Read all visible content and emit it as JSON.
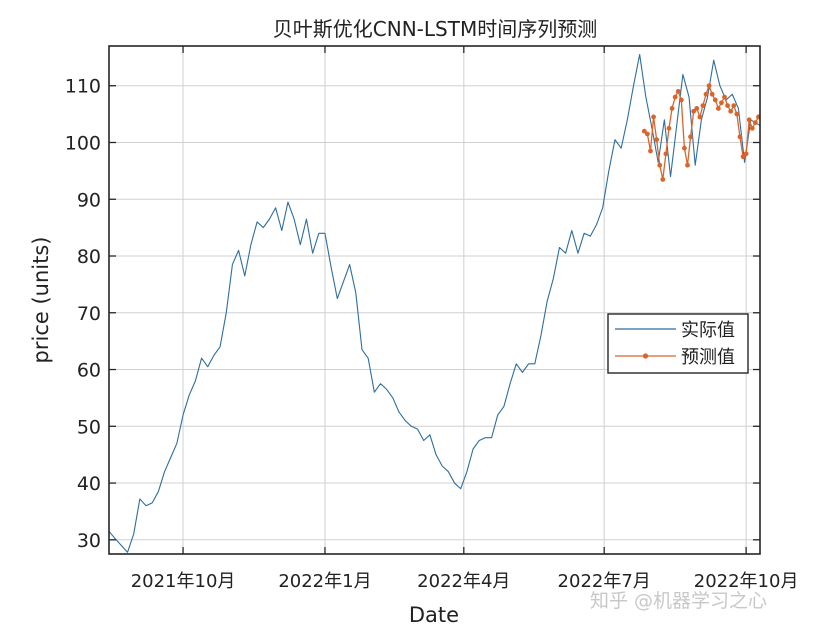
{
  "colors": {
    "actual": "#2e6e9e",
    "predicted": "#d9652b",
    "grid": "#d0d0d0",
    "axis": "#262626"
  },
  "watermark": "知乎 @机器学习之心",
  "chart_data": {
    "type": "line",
    "title": "贝叶斯优化CNN-LSTM时间序列预测",
    "xlabel": "Date",
    "ylabel": "price (units)",
    "xlim": [
      "2021-08-14",
      "2022-10-10"
    ],
    "ylim": [
      27.5,
      117
    ],
    "yticks": [
      30,
      40,
      50,
      60,
      70,
      80,
      90,
      100,
      110
    ],
    "xticks": [
      {
        "value": "2021-10-01",
        "label": "2021年10月"
      },
      {
        "value": "2022-01-01",
        "label": "2022年1月"
      },
      {
        "value": "2022-04-01",
        "label": "2022年4月"
      },
      {
        "value": "2022-07-01",
        "label": "2022年7月"
      },
      {
        "value": "2022-10-01",
        "label": "2022年10月"
      }
    ],
    "grid": true,
    "legend_position": "right",
    "series": [
      {
        "name": "实际值",
        "color": "#2e6e9e",
        "marker": "none",
        "points": [
          [
            "2021-08-14",
            31.5
          ],
          [
            "2021-08-18",
            30.2
          ],
          [
            "2021-08-22",
            29.0
          ],
          [
            "2021-08-26",
            27.8
          ],
          [
            "2021-08-30",
            31.0
          ],
          [
            "2021-09-03",
            37.2
          ],
          [
            "2021-09-07",
            36.0
          ],
          [
            "2021-09-11",
            36.5
          ],
          [
            "2021-09-15",
            38.5
          ],
          [
            "2021-09-19",
            42.0
          ],
          [
            "2021-09-23",
            44.5
          ],
          [
            "2021-09-27",
            47.0
          ],
          [
            "2021-10-01",
            52.0
          ],
          [
            "2021-10-05",
            55.5
          ],
          [
            "2021-10-09",
            58.0
          ],
          [
            "2021-10-13",
            62.0
          ],
          [
            "2021-10-17",
            60.5
          ],
          [
            "2021-10-21",
            62.5
          ],
          [
            "2021-10-25",
            64.0
          ],
          [
            "2021-10-29",
            70.0
          ],
          [
            "2021-11-02",
            78.5
          ],
          [
            "2021-11-06",
            81.0
          ],
          [
            "2021-11-10",
            76.5
          ],
          [
            "2021-11-14",
            82.0
          ],
          [
            "2021-11-18",
            86.0
          ],
          [
            "2021-11-22",
            85.0
          ],
          [
            "2021-11-26",
            86.5
          ],
          [
            "2021-11-30",
            88.5
          ],
          [
            "2021-12-04",
            84.5
          ],
          [
            "2021-12-08",
            89.5
          ],
          [
            "2021-12-12",
            86.5
          ],
          [
            "2021-12-16",
            82.0
          ],
          [
            "2021-12-20",
            86.5
          ],
          [
            "2021-12-24",
            80.5
          ],
          [
            "2021-12-28",
            84.0
          ],
          [
            "2022-01-01",
            84.0
          ],
          [
            "2022-01-05",
            78.0
          ],
          [
            "2022-01-09",
            72.5
          ],
          [
            "2022-01-13",
            75.5
          ],
          [
            "2022-01-17",
            78.5
          ],
          [
            "2022-01-21",
            73.5
          ],
          [
            "2022-01-25",
            63.5
          ],
          [
            "2022-01-29",
            62.0
          ],
          [
            "2022-02-02",
            56.0
          ],
          [
            "2022-02-06",
            57.5
          ],
          [
            "2022-02-10",
            56.5
          ],
          [
            "2022-02-14",
            55.0
          ],
          [
            "2022-02-18",
            52.5
          ],
          [
            "2022-02-22",
            51.0
          ],
          [
            "2022-02-26",
            50.0
          ],
          [
            "2022-03-02",
            49.5
          ],
          [
            "2022-03-06",
            47.5
          ],
          [
            "2022-03-10",
            48.5
          ],
          [
            "2022-03-14",
            45.0
          ],
          [
            "2022-03-18",
            43.0
          ],
          [
            "2022-03-22",
            42.0
          ],
          [
            "2022-03-26",
            40.0
          ],
          [
            "2022-03-30",
            39.0
          ],
          [
            "2022-04-03",
            42.0
          ],
          [
            "2022-04-07",
            46.0
          ],
          [
            "2022-04-11",
            47.5
          ],
          [
            "2022-04-15",
            48.0
          ],
          [
            "2022-04-19",
            48.0
          ],
          [
            "2022-04-23",
            52.0
          ],
          [
            "2022-04-27",
            53.5
          ],
          [
            "2022-05-01",
            57.5
          ],
          [
            "2022-05-05",
            61.0
          ],
          [
            "2022-05-09",
            59.5
          ],
          [
            "2022-05-13",
            61.0
          ],
          [
            "2022-05-17",
            61.0
          ],
          [
            "2022-05-21",
            66.0
          ],
          [
            "2022-05-25",
            72.0
          ],
          [
            "2022-05-29",
            76.0
          ],
          [
            "2022-06-02",
            81.5
          ],
          [
            "2022-06-06",
            80.5
          ],
          [
            "2022-06-10",
            84.5
          ],
          [
            "2022-06-14",
            80.5
          ],
          [
            "2022-06-18",
            84.0
          ],
          [
            "2022-06-22",
            83.5
          ],
          [
            "2022-06-26",
            85.5
          ],
          [
            "2022-06-30",
            88.5
          ],
          [
            "2022-07-04",
            95.0
          ],
          [
            "2022-07-08",
            100.5
          ],
          [
            "2022-07-12",
            99.0
          ],
          [
            "2022-07-16",
            104.0
          ],
          [
            "2022-07-20",
            110.0
          ],
          [
            "2022-07-24",
            115.5
          ],
          [
            "2022-07-28",
            108.0
          ],
          [
            "2022-08-01",
            102.5
          ],
          [
            "2022-08-05",
            96.5
          ],
          [
            "2022-08-09",
            104.0
          ],
          [
            "2022-08-13",
            94.0
          ],
          [
            "2022-08-17",
            103.0
          ],
          [
            "2022-08-21",
            112.0
          ],
          [
            "2022-08-25",
            108.0
          ],
          [
            "2022-08-29",
            96.0
          ],
          [
            "2022-09-02",
            104.0
          ],
          [
            "2022-09-06",
            108.0
          ],
          [
            "2022-09-10",
            114.5
          ],
          [
            "2022-09-14",
            110.0
          ],
          [
            "2022-09-18",
            107.5
          ],
          [
            "2022-09-22",
            108.5
          ],
          [
            "2022-09-26",
            106.0
          ],
          [
            "2022-09-30",
            96.5
          ],
          [
            "2022-10-04",
            104.0
          ],
          [
            "2022-10-10",
            103.0
          ]
        ]
      },
      {
        "name": "预测值",
        "color": "#d9652b",
        "marker": "dot",
        "points": [
          [
            "2022-07-27",
            102.0
          ],
          [
            "2022-07-29",
            101.5
          ],
          [
            "2022-07-31",
            98.5
          ],
          [
            "2022-08-02",
            104.5
          ],
          [
            "2022-08-04",
            100.5
          ],
          [
            "2022-08-06",
            96.0
          ],
          [
            "2022-08-08",
            93.5
          ],
          [
            "2022-08-10",
            98.0
          ],
          [
            "2022-08-12",
            102.5
          ],
          [
            "2022-08-14",
            106.0
          ],
          [
            "2022-08-16",
            108.0
          ],
          [
            "2022-08-18",
            109.0
          ],
          [
            "2022-08-20",
            107.5
          ],
          [
            "2022-08-22",
            99.0
          ],
          [
            "2022-08-24",
            96.0
          ],
          [
            "2022-08-26",
            101.0
          ],
          [
            "2022-08-28",
            105.5
          ],
          [
            "2022-08-30",
            106.0
          ],
          [
            "2022-09-01",
            104.5
          ],
          [
            "2022-09-03",
            106.5
          ],
          [
            "2022-09-05",
            108.5
          ],
          [
            "2022-09-07",
            110.0
          ],
          [
            "2022-09-09",
            108.5
          ],
          [
            "2022-09-11",
            107.5
          ],
          [
            "2022-09-13",
            106.0
          ],
          [
            "2022-09-15",
            107.0
          ],
          [
            "2022-09-17",
            108.0
          ],
          [
            "2022-09-19",
            106.5
          ],
          [
            "2022-09-21",
            105.5
          ],
          [
            "2022-09-23",
            106.5
          ],
          [
            "2022-09-25",
            105.0
          ],
          [
            "2022-09-27",
            101.0
          ],
          [
            "2022-09-29",
            97.5
          ],
          [
            "2022-10-01",
            98.0
          ],
          [
            "2022-10-03",
            104.0
          ],
          [
            "2022-10-05",
            102.5
          ],
          [
            "2022-10-07",
            103.5
          ],
          [
            "2022-10-09",
            104.5
          ]
        ]
      }
    ]
  }
}
